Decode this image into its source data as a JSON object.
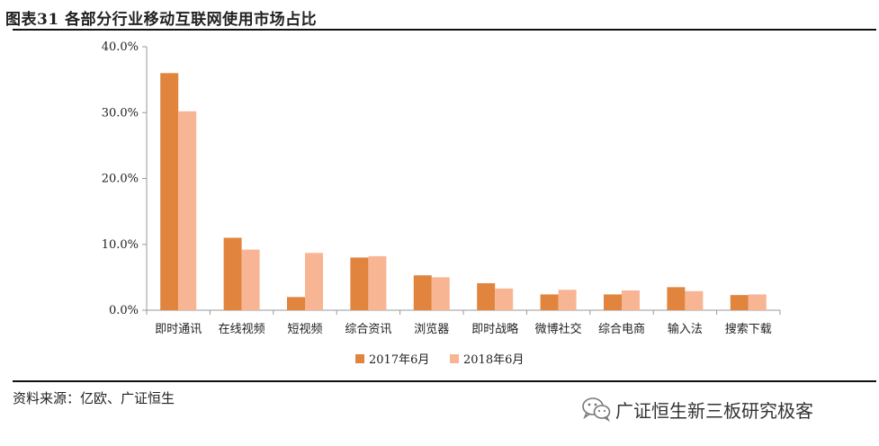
{
  "figure": {
    "title": "图表31 各部分行业移动互联网使用市场占比",
    "source": "资料来源：亿欧、广证恒生",
    "watermark": "广证恒生新三板研究极客",
    "watermark_icon": "wechat-icon"
  },
  "colors": {
    "series_2017": "#E0843E",
    "series_2018": "#F8B594",
    "axis": "#999999",
    "rule": "#111111"
  },
  "chart_data": {
    "type": "bar",
    "categories": [
      "即时通讯",
      "在线视频",
      "短视频",
      "综合资讯",
      "浏览器",
      "即时战略",
      "微博社交",
      "综合电商",
      "输入法",
      "搜索下载"
    ],
    "series": [
      {
        "name": "2017年6月",
        "values": [
          36.0,
          11.0,
          2.0,
          8.0,
          5.3,
          4.1,
          2.4,
          2.4,
          3.5,
          2.3
        ]
      },
      {
        "name": "2018年6月",
        "values": [
          30.2,
          9.2,
          8.7,
          8.2,
          5.0,
          3.3,
          3.1,
          3.0,
          2.9,
          2.4
        ]
      }
    ],
    "y_ticks": [
      "0.0%",
      "10.0%",
      "20.0%",
      "30.0%",
      "40.0%"
    ],
    "ylim": [
      0,
      40
    ],
    "legend_position": "bottom",
    "grid": false
  }
}
